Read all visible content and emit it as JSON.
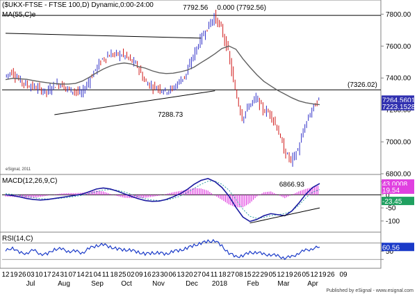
{
  "header": {
    "title": "($UKX-FTSE - FTSE 100,D) Dynamic,0:00-24:00",
    "ma_label": "MA(55,C)e"
  },
  "footer": {
    "copyright": "eSignal, 2011",
    "published": "Published by eSignal - www.esignal.com"
  },
  "colors": {
    "up_bar": "#3030c8",
    "down_bar": "#d01818",
    "ma_line": "#606060",
    "macd_line": "#1a1aa0",
    "signal_line": "#30a0a0",
    "histogram": "#e040e0",
    "rsi_line": "#1a3ac8",
    "trend_line": "#000000",
    "price_box": "#3030b0",
    "macd_box": "#e040e0",
    "signal_box": "#20a060",
    "rsi_box": "#1a3ac8"
  },
  "chart_data": [
    {
      "type": "line",
      "panel": "price",
      "ylim": [
        6800,
        7880
      ],
      "y_ticks": [
        6800,
        7000,
        7200,
        7400,
        7600,
        7800
      ],
      "y_tick_labels": [
        "6800.00",
        "7000.00",
        "7200.00",
        "7400.00",
        "7600.00",
        "7800.00"
      ],
      "series": [
        {
          "name": "MA(55,C)e",
          "values": [
            7390,
            7398,
            7395,
            7392,
            7384,
            7376,
            7370,
            7365,
            7362,
            7362,
            7366,
            7381,
            7405,
            7432,
            7456,
            7475,
            7488,
            7494,
            7488,
            7472,
            7462,
            7445,
            7433,
            7428,
            7430,
            7438,
            7449,
            7468,
            7496,
            7523,
            7552,
            7585,
            7600,
            7580,
            7520,
            7468,
            7420,
            7379,
            7350,
            7322,
            7299,
            7276,
            7257,
            7245,
            7238,
            7233
          ]
        }
      ],
      "price_path": [
        7410,
        7440,
        7390,
        7360,
        7345,
        7330,
        7310,
        7355,
        7365,
        7330,
        7320,
        7300,
        7380,
        7455,
        7520,
        7545,
        7548,
        7545,
        7512,
        7475,
        7380,
        7350,
        7338,
        7320,
        7330,
        7380,
        7425,
        7540,
        7640,
        7715,
        7785,
        7710,
        7560,
        7320,
        7150,
        7230,
        7272,
        7200,
        7180,
        7090,
        6945,
        6880,
        6950,
        7100,
        7205,
        7265
      ],
      "annotations": [
        {
          "text": "7792.56",
          "x_index": 30,
          "y": 7792.56,
          "anchor": "end",
          "dx": -10,
          "dy": -8
        },
        {
          "text": "0.000 (7792.56)",
          "x_index": 30,
          "y": 7792.56,
          "anchor": "start",
          "dx": 3,
          "dy": -8
        },
        {
          "text": "7288.73",
          "x_index": 26,
          "y": 7288.73,
          "anchor": "middle",
          "dx": -24,
          "dy": 30
        },
        {
          "text": "6866.93",
          "x_index": 41,
          "y": 6866.93,
          "anchor": "middle",
          "dx": 0,
          "dy": 34
        }
      ],
      "horizontal_lines": [
        {
          "y": 7792.56,
          "label": ""
        },
        {
          "y": 7326.02,
          "label": "(7326.02)"
        }
      ],
      "trendlines": [
        {
          "x_start": 0,
          "y_start": 7680,
          "x_end": 28,
          "y_end": 7650
        },
        {
          "x_start": 7,
          "y_start": 7170,
          "x_end": 30,
          "y_end": 7320
        }
      ],
      "value_boxes": [
        {
          "text": "7264.5601",
          "y": 7264.56
        },
        {
          "text": "7223.1528",
          "y": 7223.15
        }
      ]
    },
    {
      "type": "line",
      "panel": "macd",
      "title": "MACD(12,26,9,C)",
      "ylim": [
        -140,
        75
      ],
      "y_ticks": [
        50,
        0,
        -50,
        -100
      ],
      "y_tick_labels": [
        "50",
        "0",
        "-50",
        "-100"
      ],
      "series": [
        {
          "name": "MACD",
          "values": [
            0,
            -3,
            -8,
            -14,
            -18,
            -20,
            -18,
            -14,
            -10,
            -6,
            -2,
            3,
            12,
            22,
            26,
            22,
            14,
            4,
            -6,
            -15,
            -22,
            -25,
            -24,
            -18,
            -8,
            4,
            20,
            40,
            55,
            62,
            50,
            28,
            -5,
            -48,
            -85,
            -102,
            -94,
            -80,
            -72,
            -76,
            -80,
            -62,
            -32,
            2,
            28,
            43
          ]
        },
        {
          "name": "Signal",
          "values": [
            4,
            2,
            -2,
            -7,
            -11,
            -15,
            -16,
            -15,
            -13,
            -10,
            -6,
            -2,
            5,
            12,
            18,
            20,
            17,
            11,
            2,
            -7,
            -15,
            -20,
            -22,
            -20,
            -14,
            -5,
            8,
            24,
            40,
            52,
            52,
            40,
            18,
            -18,
            -55,
            -82,
            -90,
            -86,
            -80,
            -76,
            -72,
            -62,
            -40,
            -12,
            10,
            20
          ]
        }
      ],
      "value_boxes": [
        {
          "text": "43.0008",
          "y": 43,
          "kind": "macd"
        },
        {
          "text": "19.54",
          "y": 19.54,
          "kind": "macd"
        },
        {
          "text": "-23.45",
          "y": -23.45,
          "kind": "signal"
        }
      ],
      "trendlines": [
        {
          "x_start": 35,
          "y_start": -108,
          "x_end": 45,
          "y_end": -50
        }
      ]
    },
    {
      "type": "line",
      "panel": "rsi",
      "title": "RSI(14,C)",
      "ylim": [
        10,
        95
      ],
      "y_ticks": [
        70,
        50,
        30
      ],
      "y_tick_labels": [
        "",
        "50",
        ""
      ],
      "series": [
        {
          "name": "RSI",
          "values": [
            50,
            60,
            45,
            46,
            52,
            44,
            42,
            56,
            55,
            50,
            50,
            46,
            57,
            64,
            66,
            61,
            55,
            54,
            52,
            48,
            43,
            46,
            46,
            43,
            50,
            52,
            58,
            64,
            70,
            74,
            76,
            62,
            46,
            36,
            40,
            46,
            48,
            42,
            42,
            38,
            34,
            36,
            46,
            52,
            57,
            60
          ]
        }
      ],
      "value_boxes": [
        {
          "text": "60.56",
          "y": 60.56
        }
      ]
    }
  ],
  "x_axis": {
    "day_labels": [
      "12",
      "19",
      "26",
      "03",
      "10",
      "17",
      "24",
      "31",
      "07",
      "14",
      "21",
      "04",
      "11",
      "18",
      "25",
      "02",
      "09",
      "16",
      "23",
      "30",
      "06",
      "13",
      "20",
      "27",
      "04",
      "11",
      "18",
      "27",
      "08",
      "15",
      "22",
      "29",
      "05",
      "12",
      "19",
      "26",
      "05",
      "12",
      "19",
      "26",
      "09"
    ],
    "day_label_x": [
      8,
      20,
      32,
      44,
      56,
      68,
      80,
      92,
      104,
      116,
      128,
      140,
      152,
      164,
      176,
      188,
      200,
      212,
      224,
      236,
      248,
      260,
      272,
      284,
      296,
      308,
      320,
      332,
      344,
      356,
      368,
      380,
      392,
      404,
      416,
      428,
      440,
      452,
      464,
      476,
      494
    ],
    "month_labels": [
      "Jul",
      "Aug",
      "Sep",
      "Oct",
      "Nov",
      "Dec",
      "2018",
      "Feb",
      "Mar",
      "Apr"
    ],
    "month_label_x": [
      44,
      92,
      140,
      182,
      228,
      276,
      316,
      364,
      408,
      450
    ]
  }
}
